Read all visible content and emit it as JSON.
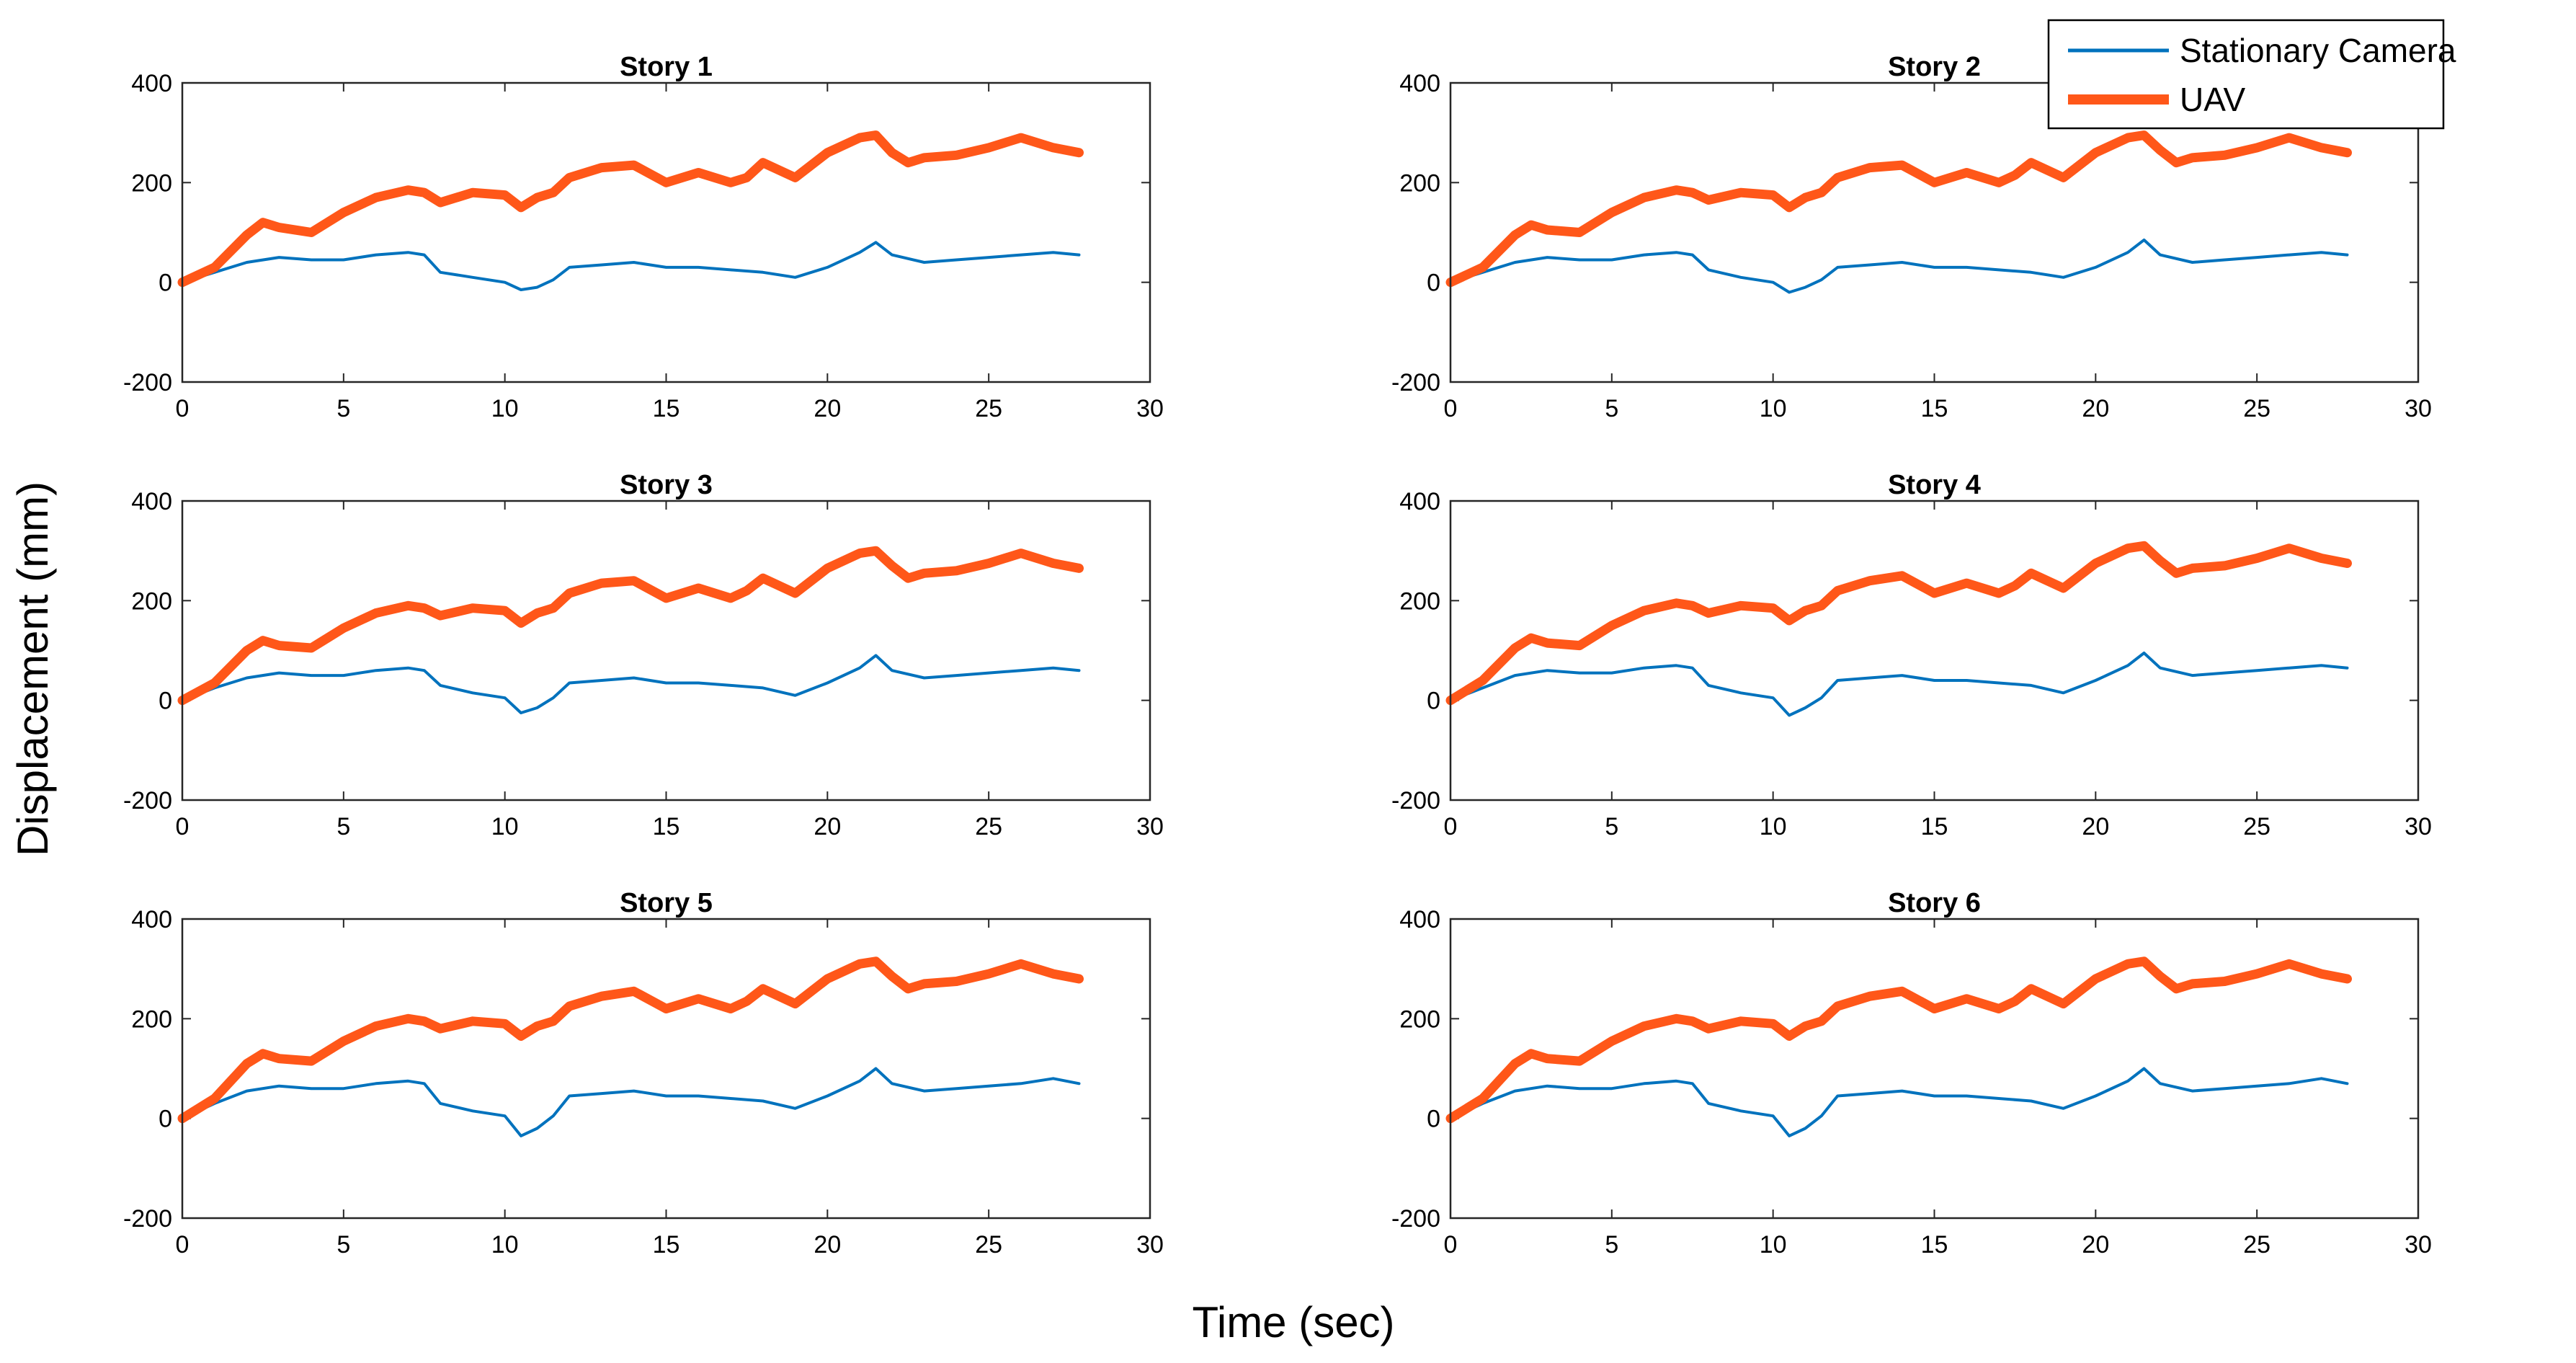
{
  "chart_data": {
    "type": "line",
    "xlabel": "Time (sec)",
    "ylabel": "Displacement (mm)",
    "xlim": [
      0,
      30
    ],
    "ylim": [
      -200,
      400
    ],
    "xticks": [
      0,
      5,
      10,
      15,
      20,
      25,
      30
    ],
    "yticks": [
      -200,
      0,
      200,
      400
    ],
    "grid": false,
    "legend_position": "top-right",
    "series_styles": [
      {
        "name": "Stationary Camera",
        "color": "#0072BD"
      },
      {
        "name": "UAV",
        "color": "#FF5719"
      }
    ],
    "panels": [
      {
        "title": "Story 1",
        "series": [
          {
            "name": "Stationary Camera",
            "x": [
              0,
              1,
              2,
              3,
              4,
              5,
              6,
              7,
              7.5,
              8,
              9,
              10,
              10.5,
              11,
              11.5,
              12,
              13,
              14,
              15,
              16,
              17,
              18,
              19,
              20,
              21,
              21.5,
              22,
              23,
              24,
              25,
              26,
              27,
              27.8
            ],
            "values": [
              0,
              20,
              40,
              50,
              45,
              45,
              55,
              60,
              55,
              20,
              10,
              0,
              -15,
              -10,
              5,
              30,
              35,
              40,
              30,
              30,
              25,
              20,
              10,
              30,
              60,
              80,
              55,
              40,
              45,
              50,
              55,
              60,
              55
            ]
          },
          {
            "name": "UAV",
            "x": [
              0,
              1,
              2,
              2.5,
              3,
              4,
              5,
              6,
              7,
              7.5,
              8,
              9,
              10,
              10.5,
              11,
              11.5,
              12,
              13,
              14,
              15,
              16,
              17,
              17.5,
              18,
              19,
              20,
              21,
              21.5,
              22,
              22.5,
              23,
              24,
              25,
              26,
              27,
              27.8
            ],
            "values": [
              0,
              30,
              95,
              120,
              110,
              100,
              140,
              170,
              185,
              180,
              160,
              180,
              175,
              150,
              170,
              180,
              210,
              230,
              235,
              200,
              220,
              200,
              210,
              240,
              210,
              260,
              290,
              295,
              260,
              240,
              250,
              255,
              270,
              290,
              270,
              260
            ]
          }
        ]
      },
      {
        "title": "Story 2",
        "series": [
          {
            "name": "Stationary Camera",
            "x": [
              0,
              1,
              2,
              3,
              4,
              5,
              6,
              7,
              7.5,
              8,
              9,
              10,
              10.5,
              11,
              11.5,
              12,
              13,
              14,
              15,
              16,
              17,
              18,
              19,
              20,
              21,
              21.5,
              22,
              23,
              24,
              25,
              26,
              27,
              27.8
            ],
            "values": [
              0,
              20,
              40,
              50,
              45,
              45,
              55,
              60,
              55,
              25,
              10,
              0,
              -20,
              -10,
              5,
              30,
              35,
              40,
              30,
              30,
              25,
              20,
              10,
              30,
              60,
              85,
              55,
              40,
              45,
              50,
              55,
              60,
              55
            ]
          },
          {
            "name": "UAV",
            "x": [
              0,
              1,
              2,
              2.5,
              3,
              4,
              5,
              6,
              7,
              7.5,
              8,
              9,
              10,
              10.5,
              11,
              11.5,
              12,
              13,
              14,
              15,
              16,
              17,
              17.5,
              18,
              19,
              20,
              21,
              21.5,
              22,
              22.5,
              23,
              24,
              25,
              26,
              27,
              27.8
            ],
            "values": [
              0,
              30,
              95,
              115,
              105,
              100,
              140,
              170,
              185,
              180,
              165,
              180,
              175,
              150,
              170,
              180,
              210,
              230,
              235,
              200,
              220,
              200,
              215,
              240,
              210,
              260,
              290,
              295,
              265,
              240,
              250,
              255,
              270,
              290,
              270,
              260
            ]
          }
        ]
      },
      {
        "title": "Story 3",
        "series": [
          {
            "name": "Stationary Camera",
            "x": [
              0,
              1,
              2,
              3,
              4,
              5,
              6,
              7,
              7.5,
              8,
              9,
              10,
              10.5,
              11,
              11.5,
              12,
              13,
              14,
              15,
              16,
              17,
              18,
              19,
              20,
              21,
              21.5,
              22,
              23,
              24,
              25,
              26,
              27,
              27.8
            ],
            "values": [
              0,
              25,
              45,
              55,
              50,
              50,
              60,
              65,
              60,
              30,
              15,
              5,
              -25,
              -15,
              5,
              35,
              40,
              45,
              35,
              35,
              30,
              25,
              10,
              35,
              65,
              90,
              60,
              45,
              50,
              55,
              60,
              65,
              60
            ]
          },
          {
            "name": "UAV",
            "x": [
              0,
              1,
              2,
              2.5,
              3,
              4,
              5,
              6,
              7,
              7.5,
              8,
              9,
              10,
              10.5,
              11,
              11.5,
              12,
              13,
              14,
              15,
              16,
              17,
              17.5,
              18,
              19,
              20,
              21,
              21.5,
              22,
              22.5,
              23,
              24,
              25,
              26,
              27,
              27.8
            ],
            "values": [
              0,
              35,
              100,
              120,
              110,
              105,
              145,
              175,
              190,
              185,
              170,
              185,
              180,
              155,
              175,
              185,
              215,
              235,
              240,
              205,
              225,
              205,
              220,
              245,
              215,
              265,
              295,
              300,
              270,
              245,
              255,
              260,
              275,
              295,
              275,
              265
            ]
          }
        ]
      },
      {
        "title": "Story 4",
        "series": [
          {
            "name": "Stationary Camera",
            "x": [
              0,
              1,
              2,
              3,
              4,
              5,
              6,
              7,
              7.5,
              8,
              9,
              10,
              10.5,
              11,
              11.5,
              12,
              13,
              14,
              15,
              16,
              17,
              18,
              19,
              20,
              21,
              21.5,
              22,
              23,
              24,
              25,
              26,
              27,
              27.8
            ],
            "values": [
              0,
              25,
              50,
              60,
              55,
              55,
              65,
              70,
              65,
              30,
              15,
              5,
              -30,
              -15,
              5,
              40,
              45,
              50,
              40,
              40,
              35,
              30,
              15,
              40,
              70,
              95,
              65,
              50,
              55,
              60,
              65,
              70,
              65
            ]
          },
          {
            "name": "UAV",
            "x": [
              0,
              1,
              2,
              2.5,
              3,
              4,
              5,
              6,
              7,
              7.5,
              8,
              9,
              10,
              10.5,
              11,
              11.5,
              12,
              13,
              14,
              15,
              16,
              17,
              17.5,
              18,
              19,
              20,
              21,
              21.5,
              22,
              22.5,
              23,
              24,
              25,
              26,
              27,
              27.8
            ],
            "values": [
              0,
              40,
              105,
              125,
              115,
              110,
              150,
              180,
              195,
              190,
              175,
              190,
              185,
              160,
              180,
              190,
              220,
              240,
              250,
              215,
              235,
              215,
              230,
              255,
              225,
              275,
              305,
              310,
              280,
              255,
              265,
              270,
              285,
              305,
              285,
              275
            ]
          }
        ]
      },
      {
        "title": "Story 5",
        "series": [
          {
            "name": "Stationary Camera",
            "x": [
              0,
              1,
              2,
              3,
              4,
              5,
              6,
              7,
              7.5,
              8,
              9,
              10,
              10.5,
              11,
              11.5,
              12,
              13,
              14,
              15,
              16,
              17,
              18,
              19,
              20,
              21,
              21.5,
              22,
              23,
              24,
              25,
              26,
              27,
              27.8
            ],
            "values": [
              0,
              30,
              55,
              65,
              60,
              60,
              70,
              75,
              70,
              30,
              15,
              5,
              -35,
              -20,
              5,
              45,
              50,
              55,
              45,
              45,
              40,
              35,
              20,
              45,
              75,
              100,
              70,
              55,
              60,
              65,
              70,
              80,
              70
            ]
          },
          {
            "name": "UAV",
            "x": [
              0,
              1,
              2,
              2.5,
              3,
              4,
              5,
              6,
              7,
              7.5,
              8,
              9,
              10,
              10.5,
              11,
              11.5,
              12,
              13,
              14,
              15,
              16,
              17,
              17.5,
              18,
              19,
              20,
              21,
              21.5,
              22,
              22.5,
              23,
              24,
              25,
              26,
              27,
              27.8
            ],
            "values": [
              0,
              40,
              110,
              130,
              120,
              115,
              155,
              185,
              200,
              195,
              180,
              195,
              190,
              165,
              185,
              195,
              225,
              245,
              255,
              220,
              240,
              220,
              235,
              260,
              230,
              280,
              310,
              315,
              285,
              260,
              270,
              275,
              290,
              310,
              290,
              280
            ]
          }
        ]
      },
      {
        "title": "Story 6",
        "series": [
          {
            "name": "Stationary Camera",
            "x": [
              0,
              1,
              2,
              3,
              4,
              5,
              6,
              7,
              7.5,
              8,
              9,
              10,
              10.5,
              11,
              11.5,
              12,
              13,
              14,
              15,
              16,
              17,
              18,
              19,
              20,
              21,
              21.5,
              22,
              23,
              24,
              25,
              26,
              27,
              27.8
            ],
            "values": [
              0,
              30,
              55,
              65,
              60,
              60,
              70,
              75,
              70,
              30,
              15,
              5,
              -35,
              -20,
              5,
              45,
              50,
              55,
              45,
              45,
              40,
              35,
              20,
              45,
              75,
              100,
              70,
              55,
              60,
              65,
              70,
              80,
              70
            ]
          },
          {
            "name": "UAV",
            "x": [
              0,
              1,
              2,
              2.5,
              3,
              4,
              5,
              6,
              7,
              7.5,
              8,
              9,
              10,
              10.5,
              11,
              11.5,
              12,
              13,
              14,
              15,
              16,
              17,
              17.5,
              18,
              19,
              20,
              21,
              21.5,
              22,
              22.5,
              23,
              24,
              25,
              26,
              27,
              27.8
            ],
            "values": [
              0,
              40,
              110,
              130,
              120,
              115,
              155,
              185,
              200,
              195,
              180,
              195,
              190,
              165,
              185,
              195,
              225,
              245,
              255,
              220,
              240,
              220,
              235,
              260,
              230,
              280,
              310,
              315,
              285,
              260,
              270,
              275,
              290,
              310,
              290,
              280
            ]
          }
        ]
      }
    ]
  }
}
